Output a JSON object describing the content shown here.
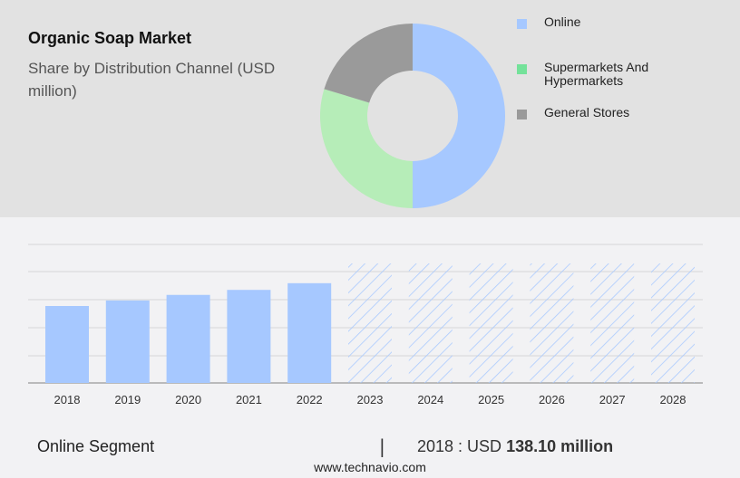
{
  "header": {
    "title": "Organic Soap Market",
    "subtitle": "Share by Distribution Channel (USD million)"
  },
  "legend": {
    "items": [
      {
        "label": "Online",
        "color": "#a6c8ff"
      },
      {
        "label": "Supermarkets And Hypermarkets",
        "color": "#74e29a"
      },
      {
        "label": "General Stores",
        "color": "#9a9a9a"
      }
    ]
  },
  "footer": {
    "segment": "Online Segment",
    "separator": "|",
    "year_label": "2018 : USD ",
    "value": "138.10 million",
    "url": "www.technavio.com"
  },
  "chart_data": [
    {
      "type": "pie",
      "title": "Share by Distribution Channel (USD million)",
      "donut": true,
      "categories": [
        "Online",
        "Supermarkets And Hypermarkets",
        "General Stores"
      ],
      "values": [
        50.0,
        29.7,
        20.3
      ],
      "colors": [
        "#a6c8ff",
        "#b6edb8",
        "#9a9a9a"
      ],
      "legend_position": "right"
    },
    {
      "type": "bar",
      "title": "Online Segment",
      "categories": [
        "2018",
        "2019",
        "2020",
        "2021",
        "2022",
        "2023",
        "2024",
        "2025",
        "2026",
        "2027",
        "2028"
      ],
      "values": [
        138.1,
        148,
        158,
        167,
        179,
        null,
        null,
        null,
        null,
        null,
        null
      ],
      "forecast": [
        false,
        false,
        false,
        false,
        false,
        true,
        true,
        true,
        true,
        true,
        true
      ],
      "forecast_display_height": 215,
      "xlabel": "",
      "ylabel": "",
      "ylim": [
        0,
        248
      ],
      "grid": true,
      "bar_color": "#a6c8ff"
    }
  ]
}
